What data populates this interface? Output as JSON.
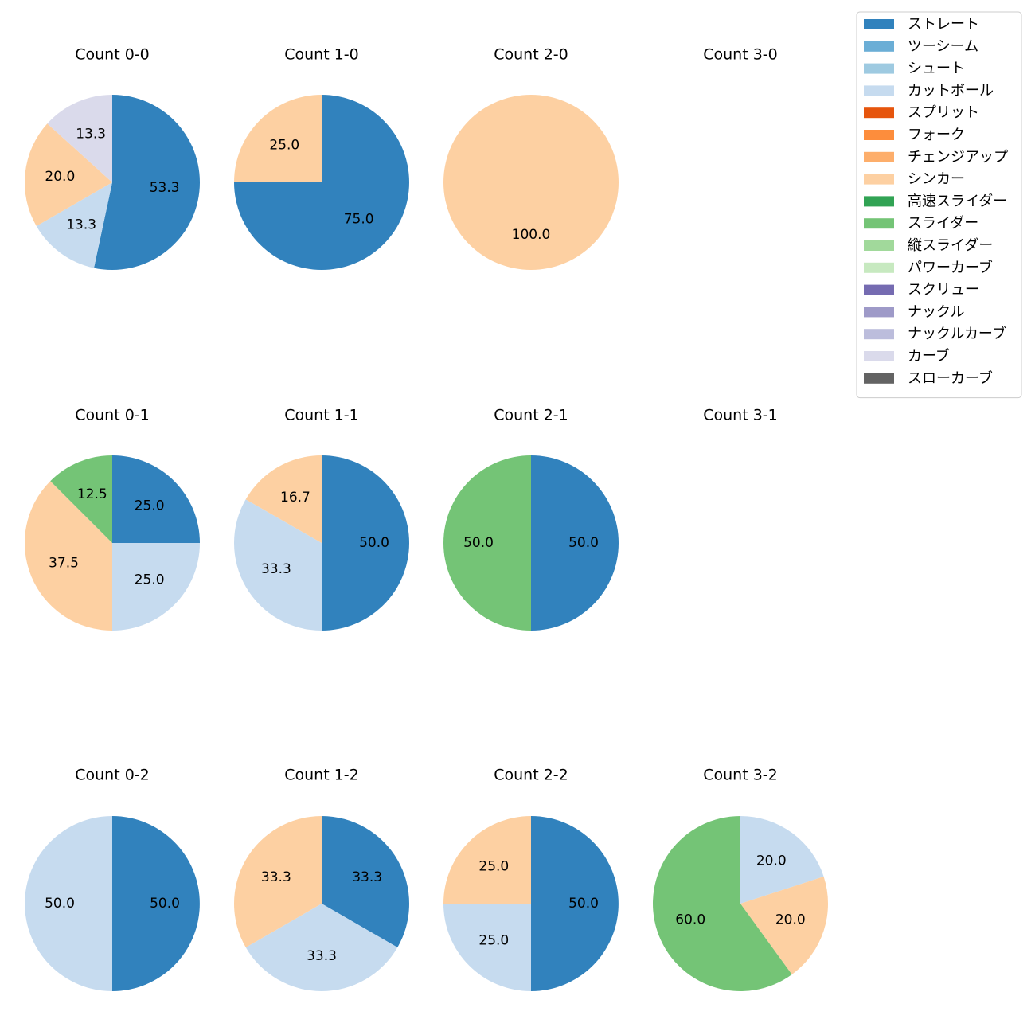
{
  "chart_data": {
    "type": "pie",
    "legend": {
      "placement": "top-right",
      "entries": [
        {
          "name": "ストレート",
          "color": "#3182bd"
        },
        {
          "name": "ツーシーム",
          "color": "#6baed6"
        },
        {
          "name": "シュート",
          "color": "#9ecae1"
        },
        {
          "name": "カットボール",
          "color": "#c6dbef"
        },
        {
          "name": "スプリット",
          "color": "#e6550d"
        },
        {
          "name": "フォーク",
          "color": "#fd8d3c"
        },
        {
          "name": "チェンジアップ",
          "color": "#fdae6b"
        },
        {
          "name": "シンカー",
          "color": "#fdd0a2"
        },
        {
          "name": "高速スライダー",
          "color": "#31a354"
        },
        {
          "name": "スライダー",
          "color": "#74c476"
        },
        {
          "name": "縦スライダー",
          "color": "#a1d99b"
        },
        {
          "name": "パワーカーブ",
          "color": "#c7e9c0"
        },
        {
          "name": "スクリュー",
          "color": "#756bb1"
        },
        {
          "name": "ナックル",
          "color": "#9e9ac8"
        },
        {
          "name": "ナックルカーブ",
          "color": "#bcbddc"
        },
        {
          "name": "カーブ",
          "color": "#dadaeb"
        },
        {
          "name": "スローカーブ",
          "color": "#636363"
        }
      ]
    },
    "pies": [
      {
        "title": "Count 0-0",
        "slices": [
          {
            "pitch": "ストレート",
            "value": 53.3,
            "label": "53.3"
          },
          {
            "pitch": "カットボール",
            "value": 13.3,
            "label": "13.3"
          },
          {
            "pitch": "シンカー",
            "value": 20.0,
            "label": "20.0"
          },
          {
            "pitch": "カーブ",
            "value": 13.3,
            "label": "13.3"
          }
        ]
      },
      {
        "title": "Count 1-0",
        "slices": [
          {
            "pitch": "ストレート",
            "value": 75.0,
            "label": "75.0"
          },
          {
            "pitch": "シンカー",
            "value": 25.0,
            "label": "25.0"
          }
        ]
      },
      {
        "title": "Count 2-0",
        "slices": [
          {
            "pitch": "シンカー",
            "value": 100.0,
            "label": "100.0"
          }
        ]
      },
      {
        "title": "Count 3-0",
        "slices": []
      },
      {
        "title": "Count 0-1",
        "slices": [
          {
            "pitch": "ストレート",
            "value": 25.0,
            "label": "25.0"
          },
          {
            "pitch": "カットボール",
            "value": 25.0,
            "label": "25.0"
          },
          {
            "pitch": "シンカー",
            "value": 37.5,
            "label": "37.5"
          },
          {
            "pitch": "スライダー",
            "value": 12.5,
            "label": "12.5"
          }
        ]
      },
      {
        "title": "Count 1-1",
        "slices": [
          {
            "pitch": "ストレート",
            "value": 50.0,
            "label": "50.0"
          },
          {
            "pitch": "カットボール",
            "value": 33.3,
            "label": "33.3"
          },
          {
            "pitch": "シンカー",
            "value": 16.7,
            "label": "16.7"
          }
        ]
      },
      {
        "title": "Count 2-1",
        "slices": [
          {
            "pitch": "ストレート",
            "value": 50.0,
            "label": "50.0"
          },
          {
            "pitch": "スライダー",
            "value": 50.0,
            "label": "50.0"
          }
        ]
      },
      {
        "title": "Count 3-1",
        "slices": []
      },
      {
        "title": "Count 0-2",
        "slices": [
          {
            "pitch": "ストレート",
            "value": 50.0,
            "label": "50.0"
          },
          {
            "pitch": "カットボール",
            "value": 50.0,
            "label": "50.0"
          }
        ]
      },
      {
        "title": "Count 1-2",
        "slices": [
          {
            "pitch": "ストレート",
            "value": 33.3,
            "label": "33.3"
          },
          {
            "pitch": "カットボール",
            "value": 33.3,
            "label": "33.3"
          },
          {
            "pitch": "シンカー",
            "value": 33.3,
            "label": "33.3"
          }
        ]
      },
      {
        "title": "Count 2-2",
        "slices": [
          {
            "pitch": "ストレート",
            "value": 50.0,
            "label": "50.0"
          },
          {
            "pitch": "カットボール",
            "value": 25.0,
            "label": "25.0"
          },
          {
            "pitch": "シンカー",
            "value": 25.0,
            "label": "25.0"
          }
        ]
      },
      {
        "title": "Count 3-2",
        "slices": [
          {
            "pitch": "カットボール",
            "value": 20.0,
            "label": "20.0"
          },
          {
            "pitch": "シンカー",
            "value": 20.0,
            "label": "20.0"
          },
          {
            "pitch": "スライダー",
            "value": 60.0,
            "label": "60.0"
          }
        ]
      }
    ]
  }
}
